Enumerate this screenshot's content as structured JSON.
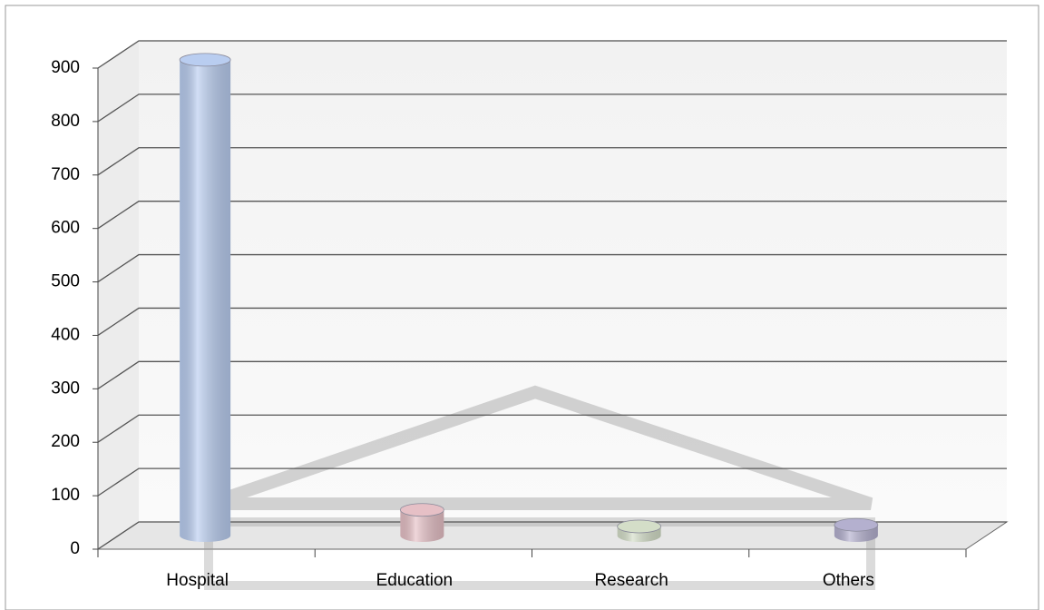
{
  "chart_data": {
    "type": "bar3d",
    "categories": [
      "Hospital",
      "Education",
      "Research",
      "Others"
    ],
    "values": [
      890,
      48,
      17,
      20
    ],
    "colors": [
      "#b9cdf0",
      "#e6c0c6",
      "#d4dec8",
      "#b4b0cf"
    ],
    "ylim": [
      0,
      900
    ],
    "yticks": [
      0,
      100,
      200,
      300,
      400,
      500,
      600,
      700,
      800,
      900
    ],
    "grid": true
  }
}
